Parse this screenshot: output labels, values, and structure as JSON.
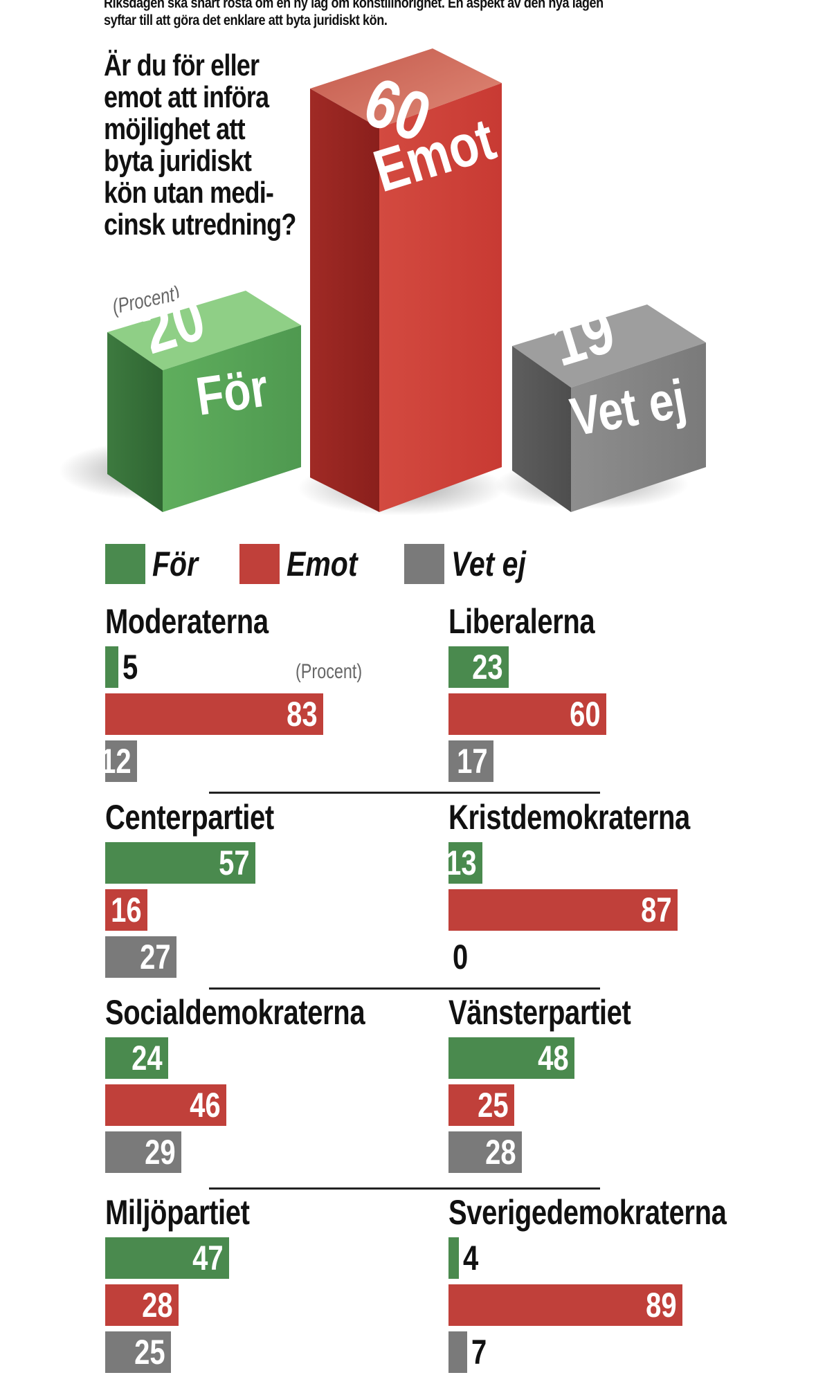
{
  "intro": "Riksdagen ska snart rösta om en ny lag om könstillhörighet. En aspekt av den nya lagen syftar till att göra det enklare att byta juridiskt kön.",
  "question_lines": [
    "Är du för eller",
    "emot att införa",
    "möjlighet att",
    "byta juridiskt",
    "kön utan medi-",
    "cinsk utredning?"
  ],
  "procent_label": "(Procent)",
  "colors": {
    "for": "#4a8a4e",
    "emot": "#c0403a",
    "vet_ej": "#7a7a7a"
  },
  "legend": {
    "for": "För",
    "emot": "Emot",
    "vet_ej": "Vet ej"
  },
  "chart_data": [
    {
      "type": "bar",
      "categories": [
        "För",
        "Emot",
        "Vet ej"
      ],
      "values": [
        20,
        60,
        19
      ],
      "ylabel": "(Procent)"
    },
    {
      "type": "bar",
      "orientation": "horizontal",
      "unit": "(Procent)",
      "series_names": [
        "För",
        "Emot",
        "Vet ej"
      ],
      "parties": [
        {
          "name": "Moderaterna",
          "values": [
            5,
            83,
            12
          ]
        },
        {
          "name": "Liberalerna",
          "values": [
            23,
            60,
            17
          ]
        },
        {
          "name": "Centerpartiet",
          "values": [
            57,
            16,
            27
          ]
        },
        {
          "name": "Kristdemokraterna",
          "values": [
            13,
            87,
            0
          ]
        },
        {
          "name": "Socialdemokraterna",
          "values": [
            24,
            46,
            29
          ]
        },
        {
          "name": "Vänsterpartiet",
          "values": [
            48,
            25,
            28
          ]
        },
        {
          "name": "Miljöpartiet",
          "values": [
            47,
            28,
            25
          ]
        },
        {
          "name": "Sverigedemokraterna",
          "values": [
            4,
            89,
            7
          ]
        }
      ]
    }
  ]
}
